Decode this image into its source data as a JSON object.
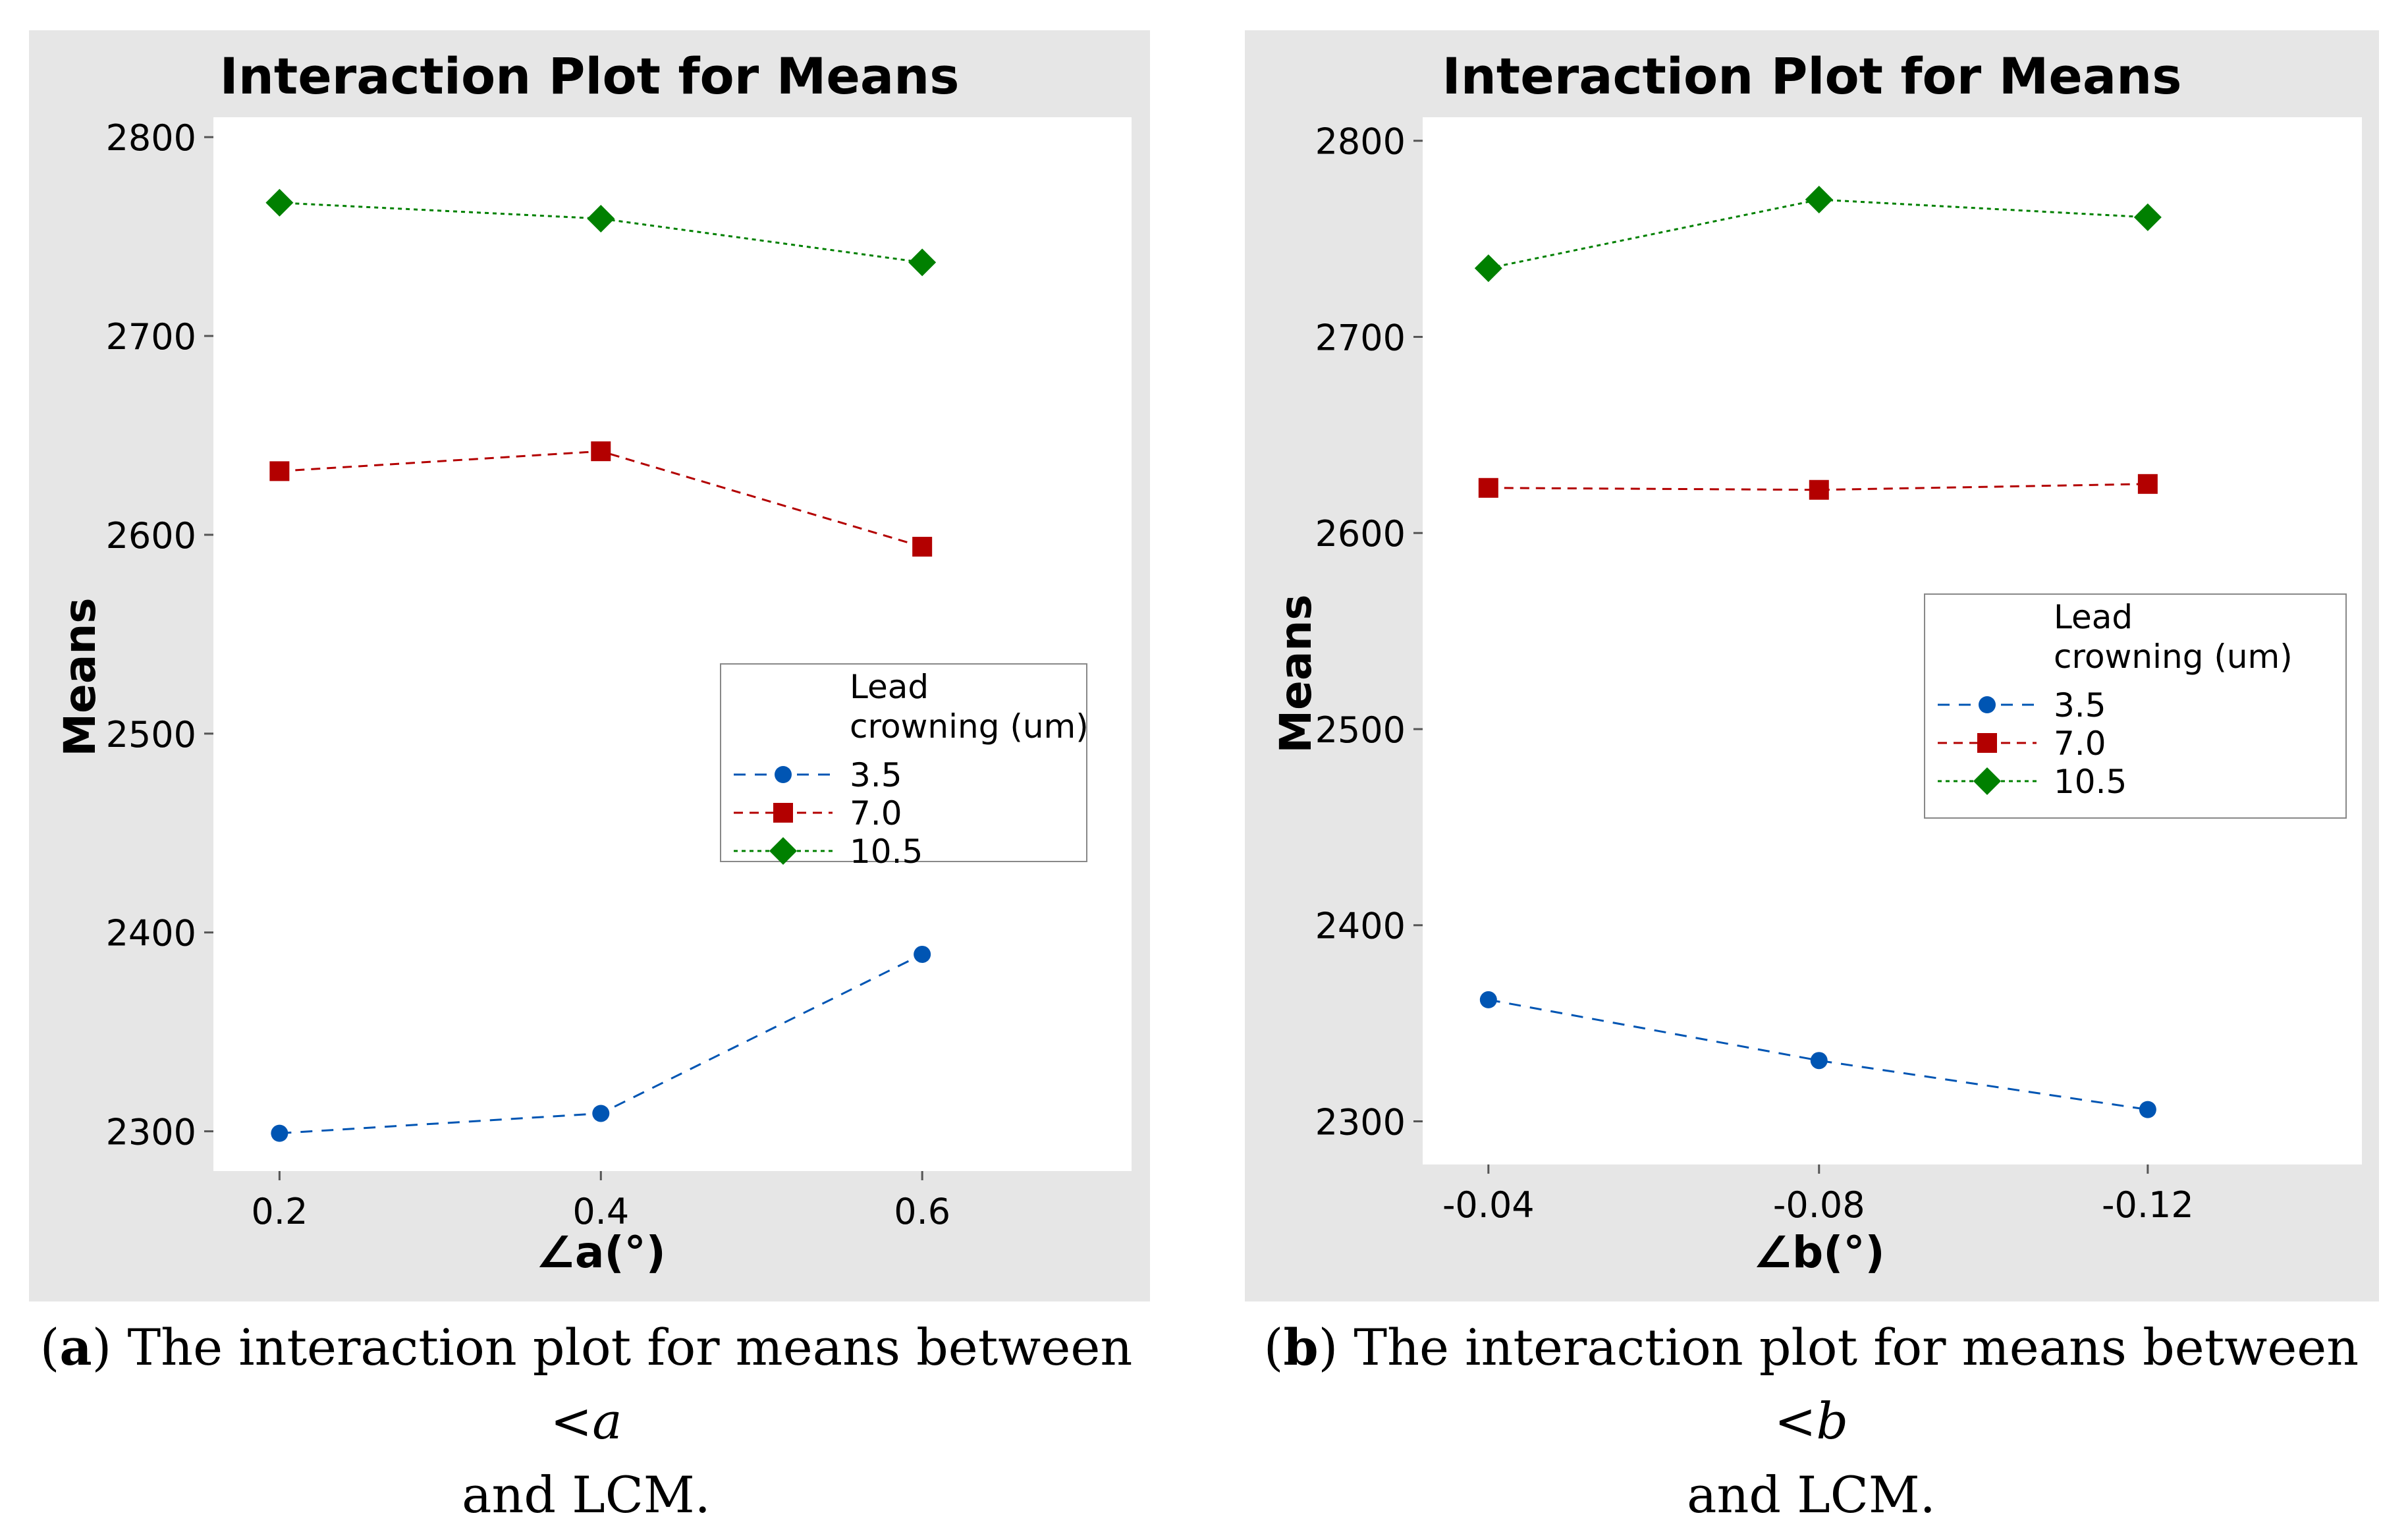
{
  "chart_data": [
    {
      "type": "line",
      "title": "Interaction Plot for Means",
      "xlabel": "∠a(°)",
      "ylabel": "Means",
      "categories": [
        "0.2",
        "0.4",
        "0.6"
      ],
      "yticks": [
        "2300",
        "2400",
        "2500",
        "2600",
        "2700",
        "2800"
      ],
      "ylim": [
        2280,
        2810
      ],
      "legend": {
        "title_line1": "Lead",
        "title_line2": "crowning  (um)",
        "placement": "right-middle"
      },
      "series": [
        {
          "name": "3.5",
          "values": [
            2299,
            2309,
            2389
          ],
          "color": "#0055b3",
          "marker": "circle"
        },
        {
          "name": "7.0",
          "values": [
            2632,
            2642,
            2594
          ],
          "color": "#b30000",
          "marker": "square"
        },
        {
          "name": "10.5",
          "values": [
            2767,
            2759,
            2737
          ],
          "color": "#008000",
          "marker": "diamond"
        }
      ]
    },
    {
      "type": "line",
      "title": "Interaction Plot for Means",
      "xlabel": "∠b(°)",
      "ylabel": "Means",
      "categories": [
        "-0.04",
        "-0.08",
        "-0.12"
      ],
      "yticks": [
        "2300",
        "2400",
        "2500",
        "2600",
        "2700",
        "2800"
      ],
      "ylim": [
        2278,
        2812
      ],
      "legend": {
        "title_line1": "Lead",
        "title_line2": "crowning  (um)",
        "placement": "right-middle"
      },
      "series": [
        {
          "name": "3.5",
          "values": [
            2362,
            2331,
            2306
          ],
          "color": "#0055b3",
          "marker": "circle"
        },
        {
          "name": "7.0",
          "values": [
            2623,
            2622,
            2625
          ],
          "color": "#b30000",
          "marker": "square"
        },
        {
          "name": "10.5",
          "values": [
            2735,
            2770,
            2761
          ],
          "color": "#008000",
          "marker": "diamond"
        }
      ]
    }
  ],
  "captions": [
    {
      "label": "a",
      "text_before": "The interaction plot for means between <",
      "var": "a",
      "line2": "and LCM."
    },
    {
      "label": "b",
      "text_before": "The interaction plot for means between <",
      "var": "b",
      "line2": "and LCM."
    }
  ]
}
